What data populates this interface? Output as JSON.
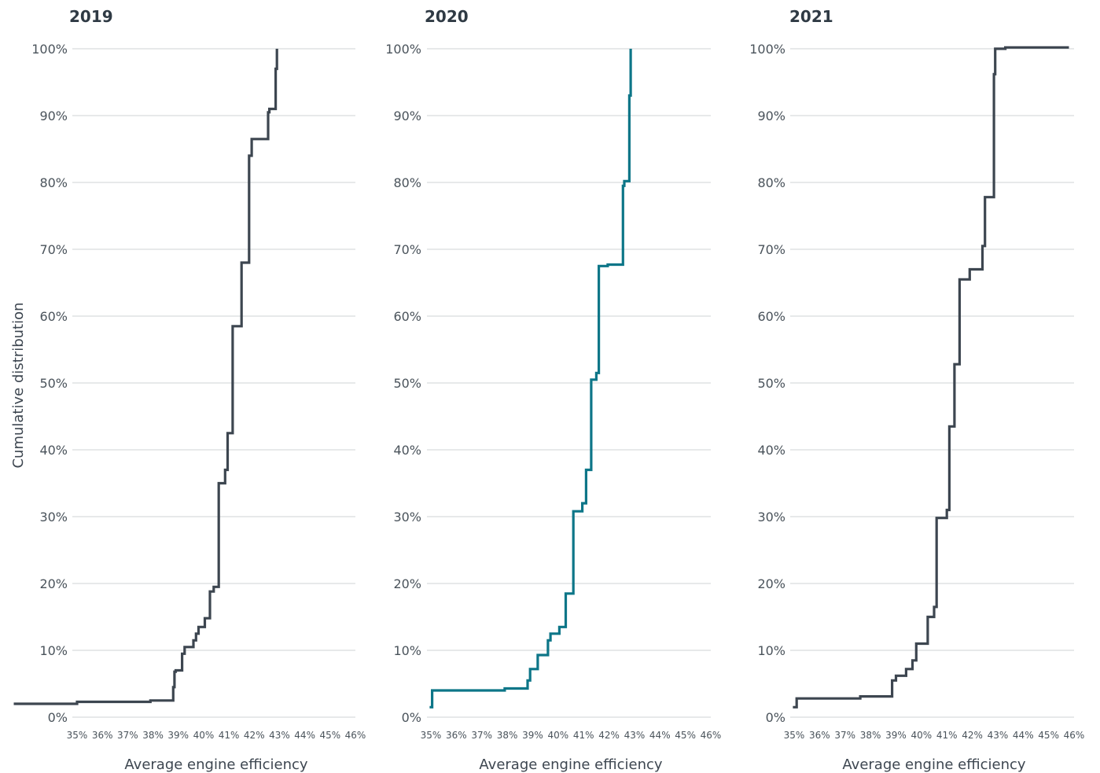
{
  "chart_data": [
    {
      "type": "line",
      "title": "2019",
      "xlabel": "Average engine efficiency",
      "ylabel": "Cumulative distribution",
      "xlim": [
        35,
        46
      ],
      "ylim": [
        0,
        100
      ],
      "x_ticks": [
        "35%",
        "36%",
        "37%",
        "38%",
        "39%",
        "40%",
        "41%",
        "42%",
        "43%",
        "44%",
        "45%",
        "46%"
      ],
      "y_ticks": [
        "0%",
        "10%",
        "20%",
        "30%",
        "40%",
        "50%",
        "60%",
        "70%",
        "80%",
        "90%",
        "100%"
      ],
      "grid": true,
      "color": "#3d4650",
      "series": [
        {
          "x": [
            32.5,
            35.0,
            35.0,
            37.9,
            37.9,
            38.8,
            38.8,
            38.85,
            38.85,
            38.9,
            38.9,
            39.15,
            39.15,
            39.25,
            39.25,
            39.6,
            39.6,
            39.7,
            39.7,
            39.8,
            39.8,
            40.05,
            40.05,
            40.25,
            40.25,
            40.4,
            40.4,
            40.6,
            40.6,
            40.85,
            40.85,
            40.95,
            40.95,
            41.15,
            41.15,
            41.5,
            41.5,
            41.8,
            41.8,
            41.9,
            41.9,
            42.55,
            42.55,
            42.6,
            42.6,
            42.85,
            42.85,
            42.9,
            42.9
          ],
          "y": [
            2.0,
            2.0,
            2.3,
            2.3,
            2.5,
            2.5,
            4.5,
            4.5,
            6.8,
            6.8,
            7.0,
            7.0,
            9.5,
            9.5,
            10.5,
            10.5,
            11.5,
            11.5,
            12.5,
            12.5,
            13.5,
            13.5,
            14.8,
            14.8,
            18.8,
            18.8,
            19.5,
            19.5,
            35.0,
            35.0,
            37.0,
            37.0,
            42.5,
            42.5,
            58.5,
            58.5,
            68.0,
            68.0,
            84.0,
            84.0,
            86.5,
            86.5,
            90.5,
            90.5,
            91.0,
            91.0,
            97.0,
            97.0,
            100.0
          ]
        }
      ]
    },
    {
      "type": "line",
      "title": "2020",
      "xlabel": "Average engine efficiency",
      "ylabel": "",
      "xlim": [
        35,
        46
      ],
      "ylim": [
        0,
        100
      ],
      "x_ticks": [
        "35%",
        "36%",
        "37%",
        "38%",
        "39%",
        "40%",
        "41%",
        "42%",
        "43%",
        "44%",
        "45%",
        "46%"
      ],
      "y_ticks": [
        "0%",
        "10%",
        "20%",
        "30%",
        "40%",
        "50%",
        "60%",
        "70%",
        "80%",
        "90%",
        "100%"
      ],
      "grid": true,
      "color": "#0d7688",
      "series": [
        {
          "x": [
            34.95,
            35.05,
            35.05,
            37.9,
            37.9,
            38.8,
            38.8,
            38.9,
            38.9,
            39.2,
            39.2,
            39.6,
            39.6,
            39.7,
            39.7,
            40.05,
            40.05,
            40.3,
            40.3,
            40.6,
            40.6,
            40.95,
            40.95,
            41.1,
            41.1,
            41.3,
            41.3,
            41.5,
            41.5,
            41.6,
            41.6,
            41.95,
            41.95,
            42.55,
            42.55,
            42.6,
            42.6,
            42.8,
            42.8,
            42.85,
            42.85
          ],
          "y": [
            1.5,
            1.5,
            4.0,
            4.0,
            4.3,
            4.3,
            5.5,
            5.5,
            7.2,
            7.2,
            9.3,
            9.3,
            11.5,
            11.5,
            12.5,
            12.5,
            13.5,
            13.5,
            18.5,
            18.5,
            30.8,
            30.8,
            32.0,
            32.0,
            37.0,
            37.0,
            50.5,
            50.5,
            51.5,
            51.5,
            67.5,
            67.5,
            67.7,
            67.7,
            79.5,
            79.5,
            80.2,
            80.2,
            93.0,
            93.0,
            100.0
          ]
        }
      ]
    },
    {
      "type": "line",
      "title": "2021",
      "xlabel": "Average engine efficiency",
      "ylabel": "",
      "xlim": [
        35,
        46
      ],
      "ylim": [
        0,
        100
      ],
      "x_ticks": [
        "35%",
        "36%",
        "37%",
        "38%",
        "39%",
        "40%",
        "41%",
        "42%",
        "43%",
        "44%",
        "45%",
        "46%"
      ],
      "y_ticks": [
        "0%",
        "10%",
        "20%",
        "30%",
        "40%",
        "50%",
        "60%",
        "70%",
        "80%",
        "90%",
        "100%"
      ],
      "grid": true,
      "color": "#3d4650",
      "series": [
        {
          "x": [
            34.95,
            35.1,
            35.1,
            37.6,
            37.6,
            38.85,
            38.85,
            39.0,
            39.0,
            39.4,
            39.4,
            39.65,
            39.65,
            39.8,
            39.8,
            40.25,
            40.25,
            40.5,
            40.5,
            40.6,
            40.6,
            41.0,
            41.0,
            41.1,
            41.1,
            41.3,
            41.3,
            41.5,
            41.5,
            41.9,
            41.9,
            42.4,
            42.4,
            42.5,
            42.5,
            42.85,
            42.85,
            42.9,
            42.9,
            43.3,
            43.3,
            45.8,
            45.8
          ],
          "y": [
            1.5,
            1.5,
            2.8,
            2.8,
            3.1,
            3.1,
            5.5,
            5.5,
            6.2,
            6.2,
            7.2,
            7.2,
            8.5,
            8.5,
            11.0,
            11.0,
            15.0,
            15.0,
            16.5,
            16.5,
            29.8,
            29.8,
            31.0,
            31.0,
            43.5,
            43.5,
            52.8,
            52.8,
            65.5,
            65.5,
            67.0,
            67.0,
            70.5,
            70.5,
            77.8,
            77.8,
            96.2,
            96.2,
            100.0,
            100.0,
            100.2,
            100.2,
            100.2
          ]
        }
      ]
    }
  ]
}
